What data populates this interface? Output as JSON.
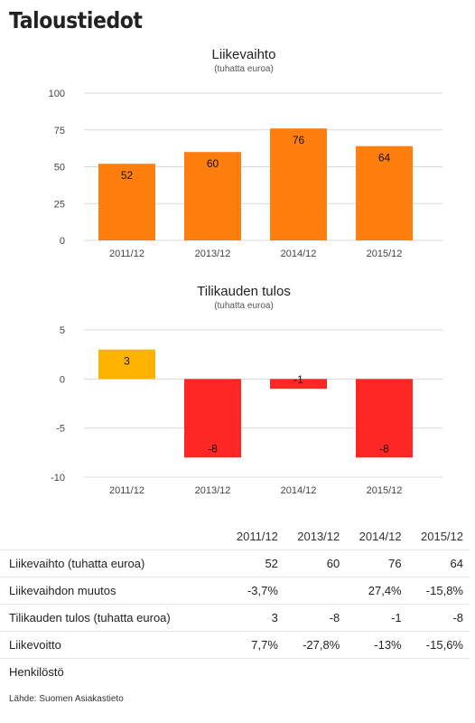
{
  "page": {
    "title": "Taloustiedot",
    "source": "Lähde: Suomen Asiakastieto"
  },
  "chart_data": [
    {
      "type": "bar",
      "title": "Liikevaihto",
      "subtitle": "(tuhatta euroa)",
      "categories": [
        "2011/12",
        "2013/12",
        "2014/12",
        "2015/12"
      ],
      "values": [
        52,
        60,
        76,
        64
      ],
      "ylim": [
        0,
        100
      ],
      "yticks": [
        0,
        25,
        50,
        75,
        100
      ],
      "grid": true,
      "colors": [
        "#ff7f0e",
        "#ff7f0e",
        "#ff7f0e",
        "#ff7f0e"
      ]
    },
    {
      "type": "bar",
      "title": "Tilikauden tulos",
      "subtitle": "(tuhatta euroa)",
      "categories": [
        "2011/12",
        "2013/12",
        "2014/12",
        "2015/12"
      ],
      "values": [
        3,
        -8,
        -1,
        -8
      ],
      "ylim": [
        -10,
        5
      ],
      "yticks": [
        -10,
        -5,
        0,
        5
      ],
      "grid": true,
      "colors": [
        "#ffb300",
        "#ff2626",
        "#ff2626",
        "#ff2626"
      ]
    }
  ],
  "table": {
    "headers": [
      "",
      "2011/12",
      "2013/12",
      "2014/12",
      "2015/12"
    ],
    "rows": [
      {
        "label": "Liikevaihto (tuhatta euroa)",
        "cells": [
          "52",
          "60",
          "76",
          "64"
        ]
      },
      {
        "label": "Liikevaihdon muutos",
        "cells": [
          "-3,7%",
          "",
          "27,4%",
          "-15,8%"
        ]
      },
      {
        "label": "Tilikauden tulos (tuhatta euroa)",
        "cells": [
          "3",
          "-8",
          "-1",
          "-8"
        ]
      },
      {
        "label": "Liikevoitto",
        "cells": [
          "7,7%",
          "-27,8%",
          "-13%",
          "-15,6%"
        ]
      },
      {
        "label": "Henkilöstö",
        "cells": [
          "",
          "",
          "",
          ""
        ]
      }
    ]
  }
}
